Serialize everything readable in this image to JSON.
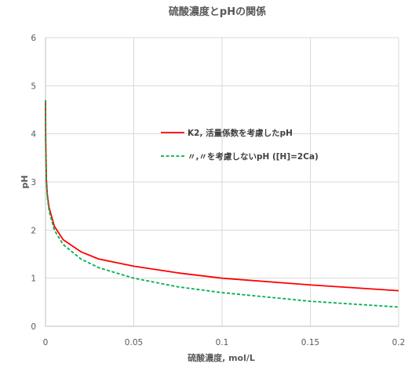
{
  "chart_data": {
    "type": "line",
    "title": "硫酸濃度とpHの関係",
    "xlabel": "硫酸濃度, mol/L",
    "ylabel": "pH",
    "xlim": [
      0,
      0.2
    ],
    "ylim": [
      0,
      6
    ],
    "x_ticks": [
      "0",
      "0.05",
      "0.1",
      "0.15",
      "0.2"
    ],
    "y_ticks": [
      "0",
      "1",
      "2",
      "3",
      "4",
      "5",
      "6"
    ],
    "grid": true,
    "legend_position": "center-right",
    "series": [
      {
        "name": "K2, 活量係数を考慮したpH",
        "color": "#ff0000",
        "style": "solid",
        "x": [
          1e-05,
          0.0001,
          0.0005,
          0.001,
          0.002,
          0.005,
          0.01,
          0.02,
          0.03,
          0.05,
          0.075,
          0.1,
          0.15,
          0.2
        ],
        "y": [
          4.7,
          3.9,
          3.05,
          2.75,
          2.47,
          2.08,
          1.8,
          1.55,
          1.4,
          1.25,
          1.11,
          1.0,
          0.86,
          0.74
        ]
      },
      {
        "name": "〃,〃を考慮しないpH ([H]=2Ca)",
        "color": "#00b050",
        "style": "dashed",
        "x": [
          1e-05,
          0.0001,
          0.0005,
          0.001,
          0.002,
          0.005,
          0.01,
          0.02,
          0.03,
          0.05,
          0.075,
          0.1,
          0.15,
          0.2
        ],
        "y": [
          4.7,
          3.7,
          3.0,
          2.7,
          2.4,
          2.0,
          1.7,
          1.4,
          1.22,
          1.0,
          0.82,
          0.7,
          0.52,
          0.4
        ]
      }
    ]
  }
}
